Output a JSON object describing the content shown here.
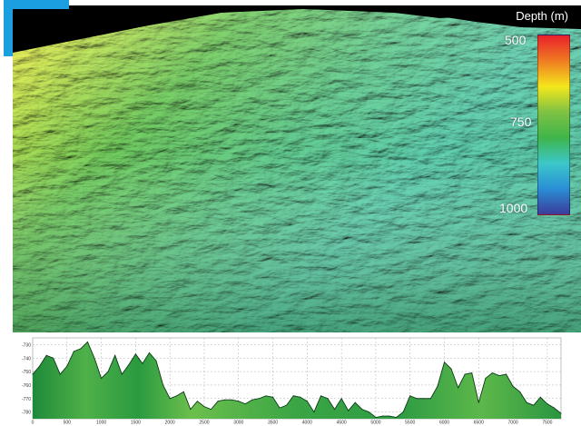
{
  "legend": {
    "title": "Depth (m)",
    "ticks": [
      "500",
      "750",
      "1000"
    ],
    "colors": [
      "#e8202a",
      "#f07c22",
      "#f4e71c",
      "#7ec243",
      "#3fb54a",
      "#3cc7c9",
      "#2a8fd6",
      "#3a3b9a"
    ]
  },
  "chart_data": {
    "type": "area",
    "title": "",
    "xlabel": "",
    "ylabel": "",
    "xlim": [
      0,
      7700
    ],
    "ylim": [
      -785,
      -725
    ],
    "x_ticks": [
      0,
      500,
      1000,
      1500,
      2000,
      2500,
      3000,
      3500,
      4000,
      4500,
      5000,
      5500,
      6000,
      6500,
      7000,
      7500
    ],
    "y_ticks": [
      -730,
      -740,
      -750,
      -760,
      -770,
      -780
    ],
    "grid": true,
    "series": [
      {
        "x": [
          0,
          100,
          200,
          300,
          400,
          500,
          600,
          700,
          800,
          900,
          1000,
          1100,
          1200,
          1300,
          1400,
          1500,
          1600,
          1700,
          1800,
          1900,
          2000,
          2100,
          2200,
          2300,
          2400,
          2500,
          2600,
          2700,
          2800,
          2900,
          3000,
          3100,
          3200,
          3300,
          3400,
          3500,
          3600,
          3700,
          3800,
          3900,
          4000,
          4100,
          4200,
          4300,
          4400,
          4500,
          4600,
          4700,
          4800,
          4900,
          5000,
          5100,
          5200,
          5300,
          5400,
          5500,
          5600,
          5700,
          5800,
          5900,
          6000,
          6100,
          6200,
          6300,
          6400,
          6500,
          6600,
          6700,
          6800,
          6900,
          7000,
          7100,
          7200,
          7300,
          7400,
          7500,
          7600,
          7700
        ],
        "y": [
          -752,
          -746,
          -738,
          -740,
          -752,
          -746,
          -735,
          -733,
          -728,
          -740,
          -755,
          -750,
          -738,
          -752,
          -745,
          -737,
          -744,
          -736,
          -742,
          -760,
          -770,
          -768,
          -765,
          -778,
          -772,
          -776,
          -778,
          -772,
          -771,
          -771,
          -772,
          -774,
          -771,
          -770,
          -768,
          -769,
          -777,
          -775,
          -768,
          -769,
          -772,
          -780,
          -768,
          -770,
          -778,
          -770,
          -779,
          -773,
          -778,
          -780,
          -784,
          -783,
          -783,
          -784,
          -780,
          -768,
          -770,
          -770,
          -770,
          -761,
          -743,
          -748,
          -762,
          -752,
          -751,
          -773,
          -755,
          -751,
          -753,
          -752,
          -761,
          -765,
          -773,
          -775,
          -769,
          -774,
          -777,
          -781
        ]
      }
    ]
  }
}
